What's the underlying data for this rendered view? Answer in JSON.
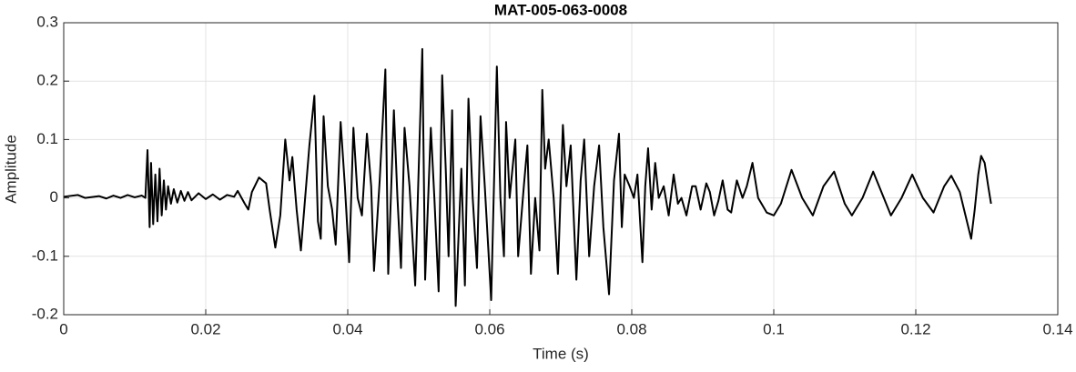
{
  "chart_data": {
    "type": "line",
    "title": "MAT-005-063-0008",
    "x_label": "Time (s)",
    "y_label": "Amplitude",
    "color": "#000000",
    "grid": true,
    "xlim": [
      0,
      0.14
    ],
    "xticks": [
      0,
      0.02,
      0.04,
      0.06,
      0.08,
      0.1,
      0.12,
      0.14
    ],
    "ylim": [
      -0.2,
      0.3
    ],
    "yticks": [
      -0.2,
      -0.1,
      0,
      0.1,
      0.2,
      0.3
    ],
    "x": [
      0,
      0.002,
      0.003,
      0.005,
      0.006,
      0.007,
      0.008,
      0.009,
      0.01,
      0.011,
      0.0115,
      0.0118,
      0.0121,
      0.0123,
      0.0126,
      0.0129,
      0.0132,
      0.0135,
      0.0138,
      0.0141,
      0.0144,
      0.0147,
      0.0151,
      0.0155,
      0.016,
      0.0165,
      0.017,
      0.0175,
      0.018,
      0.019,
      0.02,
      0.021,
      0.022,
      0.023,
      0.024,
      0.0245,
      0.0255,
      0.026,
      0.0265,
      0.0275,
      0.0285,
      0.029,
      0.0298,
      0.0305,
      0.0312,
      0.0318,
      0.0322,
      0.0328,
      0.0334,
      0.034,
      0.0346,
      0.0353,
      0.0358,
      0.0362,
      0.0366,
      0.0372,
      0.0378,
      0.0383,
      0.039,
      0.0396,
      0.0402,
      0.0408,
      0.0414,
      0.042,
      0.0427,
      0.0433,
      0.0437,
      0.0445,
      0.0453,
      0.0457,
      0.0465,
      0.047,
      0.0475,
      0.048,
      0.0487,
      0.0495,
      0.0505,
      0.0509,
      0.0517,
      0.0522,
      0.0528,
      0.0533,
      0.0538,
      0.0542,
      0.0547,
      0.0552,
      0.056,
      0.0565,
      0.057,
      0.0576,
      0.0582,
      0.0587,
      0.0593,
      0.0602,
      0.061,
      0.0615,
      0.062,
      0.0623,
      0.0628,
      0.0636,
      0.064,
      0.0648,
      0.0653,
      0.0658,
      0.0664,
      0.067,
      0.0674,
      0.0678,
      0.0683,
      0.069,
      0.0696,
      0.0703,
      0.0708,
      0.0714,
      0.0722,
      0.0728,
      0.0733,
      0.074,
      0.0747,
      0.0754,
      0.076,
      0.0768,
      0.0775,
      0.0782,
      0.0786,
      0.079,
      0.0797,
      0.0803,
      0.0808,
      0.0815,
      0.0819,
      0.0823,
      0.0828,
      0.0833,
      0.0838,
      0.0845,
      0.0852,
      0.0859,
      0.0865,
      0.087,
      0.0877,
      0.0885,
      0.089,
      0.0897,
      0.0905,
      0.091,
      0.0916,
      0.0922,
      0.0928,
      0.0935,
      0.094,
      0.0948,
      0.0956,
      0.0962,
      0.097,
      0.0978,
      0.099,
      0.1,
      0.101,
      0.1025,
      0.104,
      0.1055,
      0.107,
      0.1085,
      0.11,
      0.111,
      0.1125,
      0.114,
      0.1155,
      0.1165,
      0.118,
      0.1195,
      0.121,
      0.1225,
      0.124,
      0.125,
      0.1262,
      0.127,
      0.1278,
      0.1283,
      0.1288,
      0.1292,
      0.1297,
      0.1302,
      0.1306
    ],
    "values": [
      0.002,
      0.005,
      0.0,
      0.003,
      -0.001,
      0.004,
      0.0,
      0.005,
      0.001,
      0.004,
      0.0,
      0.082,
      -0.05,
      0.06,
      -0.045,
      0.04,
      -0.04,
      0.05,
      -0.03,
      0.03,
      -0.02,
      0.02,
      -0.01,
      0.015,
      -0.008,
      0.012,
      -0.005,
      0.01,
      -0.004,
      0.008,
      -0.002,
      0.006,
      -0.003,
      0.005,
      0.002,
      0.012,
      -0.01,
      -0.02,
      0.01,
      0.035,
      0.025,
      -0.02,
      -0.085,
      -0.03,
      0.1,
      0.03,
      0.07,
      -0.02,
      -0.09,
      0.0,
      0.09,
      0.175,
      -0.04,
      -0.07,
      0.14,
      0.02,
      -0.02,
      -0.08,
      0.13,
      0.02,
      -0.11,
      0.12,
      0.0,
      -0.03,
      0.11,
      0.02,
      -0.125,
      0.03,
      0.22,
      -0.13,
      0.15,
      0.0,
      -0.12,
      0.12,
      0.02,
      -0.15,
      0.255,
      -0.14,
      0.12,
      0.0,
      -0.16,
      0.21,
      0.05,
      -0.1,
      0.15,
      -0.185,
      0.05,
      -0.15,
      0.17,
      0.0,
      -0.12,
      0.14,
      0.02,
      -0.175,
      0.225,
      0.0,
      -0.1,
      0.13,
      0.0,
      0.1,
      -0.1,
      0.02,
      0.09,
      -0.13,
      0.0,
      -0.09,
      0.185,
      0.05,
      0.1,
      0.0,
      -0.13,
      0.125,
      0.02,
      0.09,
      -0.14,
      0.03,
      0.1,
      -0.1,
      0.02,
      0.09,
      -0.05,
      -0.165,
      0.03,
      0.11,
      -0.05,
      0.04,
      0.02,
      0.0,
      0.04,
      -0.11,
      0.02,
      0.085,
      -0.02,
      0.06,
      0.0,
      0.02,
      -0.03,
      0.04,
      -0.01,
      0.0,
      -0.03,
      0.02,
      0.02,
      -0.02,
      0.025,
      0.01,
      -0.03,
      -0.005,
      0.03,
      -0.02,
      -0.025,
      0.03,
      0.0,
      0.02,
      0.06,
      0.0,
      -0.025,
      -0.03,
      -0.01,
      0.048,
      0.0,
      -0.03,
      0.02,
      0.045,
      -0.01,
      -0.03,
      0.0,
      0.045,
      0.0,
      -0.03,
      0.0,
      0.04,
      0.0,
      -0.025,
      0.02,
      0.038,
      0.01,
      -0.03,
      -0.07,
      -0.02,
      0.04,
      0.072,
      0.06,
      0.02,
      -0.01
    ]
  }
}
